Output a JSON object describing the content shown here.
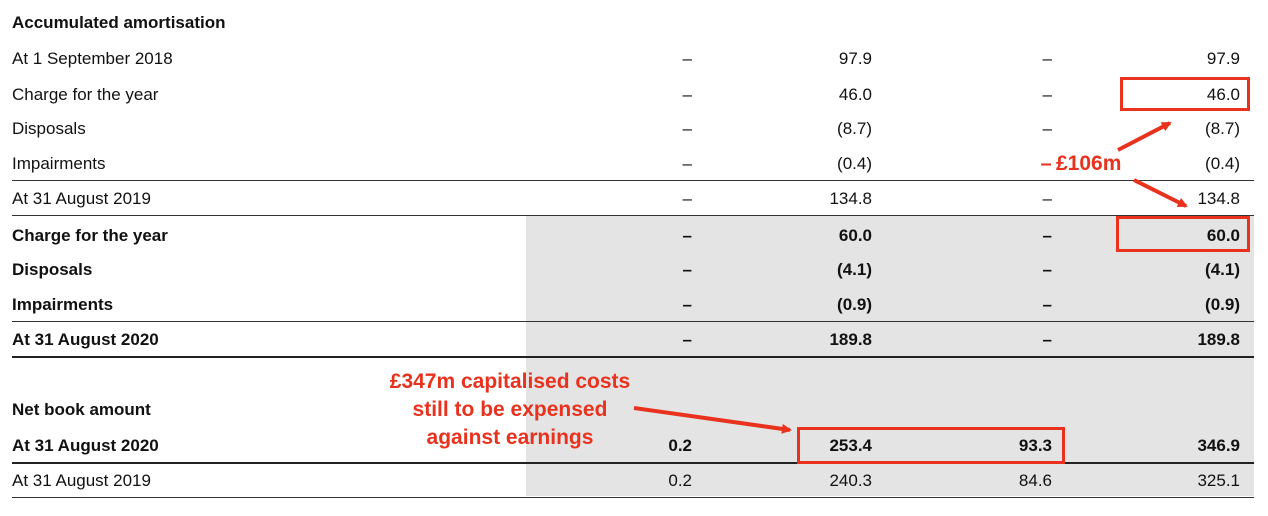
{
  "section_header": "Accumulated amortisation",
  "rows_2019": [
    {
      "label": "At 1 September 2018",
      "c1": "–",
      "c2": "97.9",
      "c3": "–",
      "c4": "97.9"
    },
    {
      "label": "Charge for the year",
      "c1": "–",
      "c2": "46.0",
      "c3": "–",
      "c4": "46.0"
    },
    {
      "label": "Disposals",
      "c1": "–",
      "c2": "(8.7)",
      "c3": "–",
      "c4": "(8.7)"
    },
    {
      "label": "Impairments",
      "c1": "–",
      "c2": "(0.4)",
      "c3": "–",
      "c4": "(0.4)"
    },
    {
      "label": "At 31 August 2019",
      "c1": "–",
      "c2": "134.8",
      "c3": "–",
      "c4": "134.8"
    }
  ],
  "rows_2020": [
    {
      "label": "Charge for the year",
      "c1": "–",
      "c2": "60.0",
      "c3": "–",
      "c4": "60.0"
    },
    {
      "label": "Disposals",
      "c1": "–",
      "c2": "(4.1)",
      "c3": "–",
      "c4": "(4.1)"
    },
    {
      "label": "Impairments",
      "c1": "–",
      "c2": "(0.9)",
      "c3": "–",
      "c4": "(0.9)"
    },
    {
      "label": "At 31 August 2020",
      "c1": "–",
      "c2": "189.8",
      "c3": "–",
      "c4": "189.8"
    }
  ],
  "nbv_header": "Net book amount",
  "nbv_rows": [
    {
      "label": "At 31 August 2020",
      "c1": "0.2",
      "c2": "253.4",
      "c3": "93.3",
      "c4": "346.9"
    },
    {
      "label": "At 31 August 2019",
      "c1": "0.2",
      "c2": "240.3",
      "c3": "84.6",
      "c4": "325.1"
    }
  ],
  "annotations": {
    "dash_marker": "–",
    "amount": "£106m",
    "capitalised": [
      "£347m capitalised costs",
      "still to be expensed",
      "against earnings"
    ]
  },
  "colors": {
    "annotation_red": "#e8321e",
    "shade": "#e4e4e4"
  }
}
